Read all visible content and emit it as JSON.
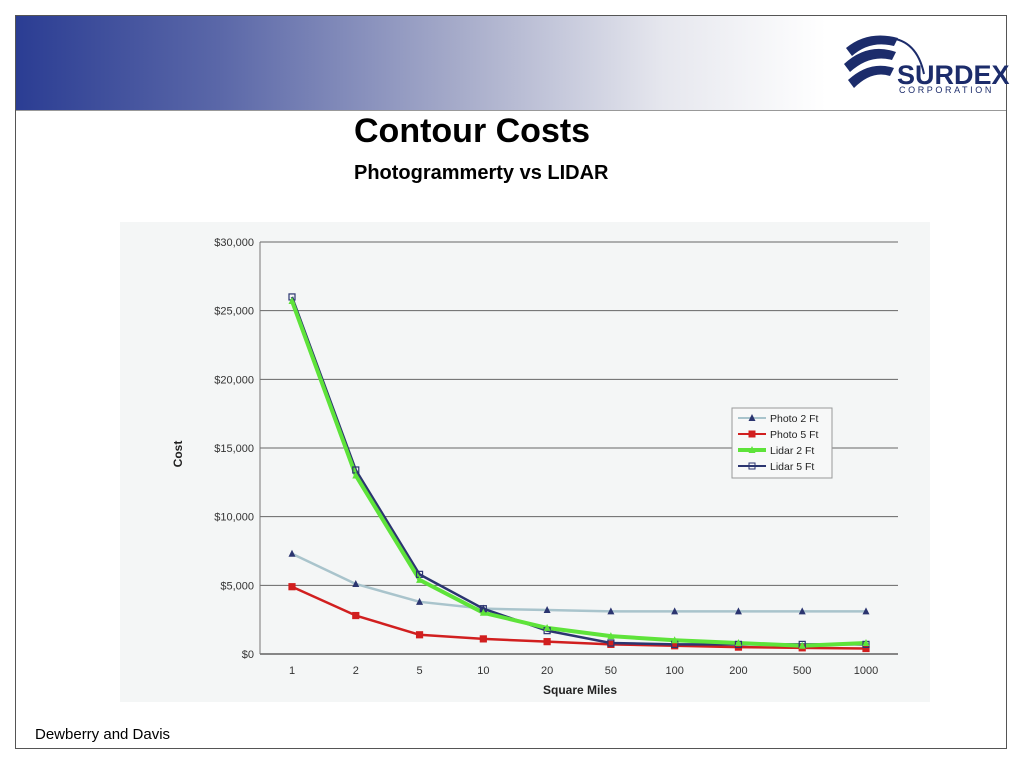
{
  "slide": {
    "title": "Contour Costs",
    "subtitle": "Photogrammerty vs LIDAR",
    "footer": "Dewberry and Davis",
    "logo": {
      "name": "SURDEX",
      "sub": "CORPORATION",
      "color": "#1c2c6b"
    },
    "header_colors": {
      "dark": "#2b3d93",
      "light": "#ffffff"
    }
  },
  "chart_data": {
    "type": "line",
    "x": [
      "1",
      "2",
      "5",
      "10",
      "20",
      "50",
      "100",
      "200",
      "500",
      "1000"
    ],
    "xlabel": "Square Miles",
    "ylabel": "Cost",
    "yticks": [
      "$0",
      "$5,000",
      "$10,000",
      "$15,000",
      "$20,000",
      "$25,000",
      "$30,000"
    ],
    "ylim": [
      0,
      30000
    ],
    "grid": true,
    "legend": "right",
    "series": [
      {
        "name": "Photo 2 Ft",
        "color": "#a9c4cc",
        "marker": "triangle",
        "values": [
          7300,
          5100,
          3800,
          3300,
          3200,
          3100,
          3100,
          3100,
          3100,
          3100
        ]
      },
      {
        "name": "Photo 5 Ft",
        "color": "#d11f1f",
        "marker": "square",
        "values": [
          4900,
          2800,
          1400,
          1100,
          900,
          700,
          600,
          500,
          450,
          400
        ]
      },
      {
        "name": "Lidar 2 Ft",
        "color": "#5ee33a",
        "marker": "triangle",
        "values": [
          25700,
          13000,
          5400,
          3000,
          1900,
          1300,
          1000,
          800,
          600,
          800
        ]
      },
      {
        "name": "Lidar 5 Ft",
        "color": "#2b3570",
        "marker": "square",
        "values": [
          26000,
          13400,
          5800,
          3300,
          1700,
          800,
          700,
          700,
          700,
          700
        ]
      }
    ]
  }
}
